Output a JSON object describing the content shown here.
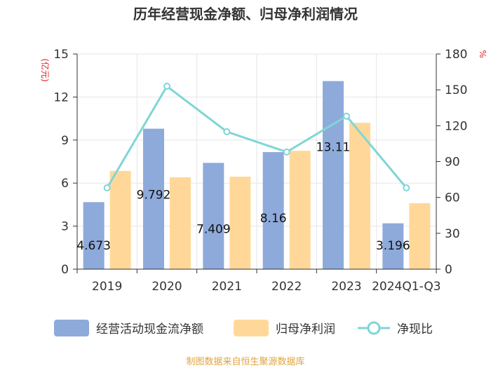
{
  "chart_data": {
    "type": "bar+line",
    "title": "历年经营现金净额、归母净利润情况",
    "categories": [
      "2019",
      "2020",
      "2021",
      "2022",
      "2023",
      "2024Q1-Q3"
    ],
    "series": [
      {
        "name": "经营活动现金流净额",
        "type": "bar",
        "axis": "left",
        "color": "#8eaadb",
        "values": [
          4.673,
          9.792,
          7.409,
          8.16,
          13.11,
          3.196
        ],
        "labels": [
          "4.673",
          "9.792",
          "7.409",
          "8.16",
          "13.11",
          "3.196"
        ]
      },
      {
        "name": "归母净利润",
        "type": "bar",
        "axis": "left",
        "color": "#ffd899",
        "values": [
          6.85,
          6.4,
          6.45,
          8.25,
          10.2,
          4.6
        ]
      },
      {
        "name": "净现比",
        "type": "line",
        "axis": "right",
        "color": "#7fd6d6",
        "values": [
          68,
          153,
          115,
          98,
          128,
          68
        ]
      }
    ],
    "ylabel_left": "亿元",
    "ylabel_right": "%",
    "ylim_left": [
      0,
      15
    ],
    "ylim_right": [
      0,
      180
    ],
    "yticks_left": [
      "0",
      "3",
      "6",
      "9",
      "12",
      "15"
    ],
    "yticks_right": [
      "0",
      "30",
      "60",
      "90",
      "120",
      "150",
      "180"
    ],
    "unit_color": "#e02020",
    "legend_position": "bottom"
  },
  "source_text": "制图数据来自恒生聚源数据库",
  "source_color": "#e0a43c"
}
